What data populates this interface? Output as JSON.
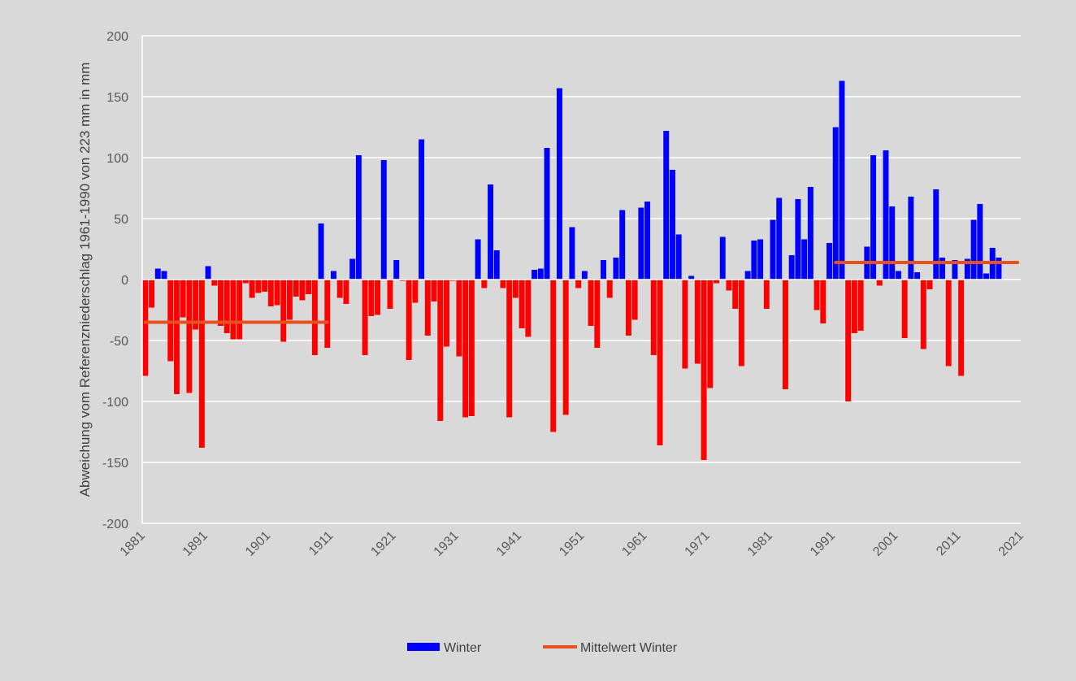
{
  "chart_data": {
    "type": "bar",
    "ylabel": "Abweichung vom Referenzniederschlag 1961-1990 von 223 mm in mm",
    "xlabel": "",
    "ylim": [
      -200,
      200
    ],
    "yticks": [
      200,
      150,
      100,
      50,
      0,
      -50,
      -100,
      -150,
      -200
    ],
    "xlim": [
      1881,
      2021
    ],
    "xticks": [
      "1881",
      "1891",
      "1901",
      "1911",
      "1921",
      "1931",
      "1941",
      "1951",
      "1961",
      "1971",
      "1981",
      "1991",
      "2001",
      "2011",
      "2021"
    ],
    "grid": true,
    "legend_position": "bottom",
    "colors": {
      "positive": "#0000ff",
      "negative": "#ff0000",
      "mean_line": "#e8501e",
      "grid": "#ffffff"
    },
    "series": [
      {
        "name": "Winter",
        "start_year": 1881,
        "values": [
          -79,
          -23,
          9,
          7,
          -67,
          -94,
          -31,
          -93,
          -41,
          -138,
          11,
          -5,
          -38,
          -44,
          -49,
          -49,
          -3,
          -15,
          -11,
          -10,
          -22,
          -21,
          -51,
          -33,
          -14,
          -17,
          -12,
          -62,
          46,
          -56,
          7,
          -15,
          -20,
          17,
          102,
          -62,
          -30,
          -29,
          98,
          -24,
          16,
          -1,
          -66,
          -19,
          115,
          -46,
          -18,
          -116,
          -55,
          -1,
          -63,
          -113,
          -112,
          33,
          -7,
          78,
          24,
          -7,
          -113,
          -15,
          -40,
          -47,
          8,
          9,
          108,
          -125,
          157,
          -111,
          43,
          -7,
          7,
          -38,
          -56,
          16,
          -15,
          18,
          57,
          -46,
          -33,
          59,
          64,
          -62,
          -136,
          122,
          90,
          37,
          -73,
          3,
          -69,
          -148,
          -89,
          -3,
          35,
          -9,
          -24,
          -71,
          7,
          32,
          33,
          -24,
          49,
          67,
          -90,
          20,
          66,
          33,
          76,
          -25,
          -36,
          30,
          125,
          163,
          -100,
          -44,
          -42,
          27,
          102,
          -5,
          106,
          60,
          7,
          -48,
          68,
          6,
          -57,
          -8,
          74,
          18,
          -71,
          16,
          -79,
          17,
          49,
          62,
          5,
          26,
          18
        ]
      },
      {
        "name": "Mittelwert Winter",
        "segments": [
          {
            "from": 1881,
            "to": 1910,
            "value": -35
          },
          {
            "from": 1991,
            "to": 2020,
            "value": 14
          }
        ]
      }
    ]
  },
  "legend": {
    "winter_label": "Winter",
    "mean_label": "Mittelwert Winter"
  }
}
